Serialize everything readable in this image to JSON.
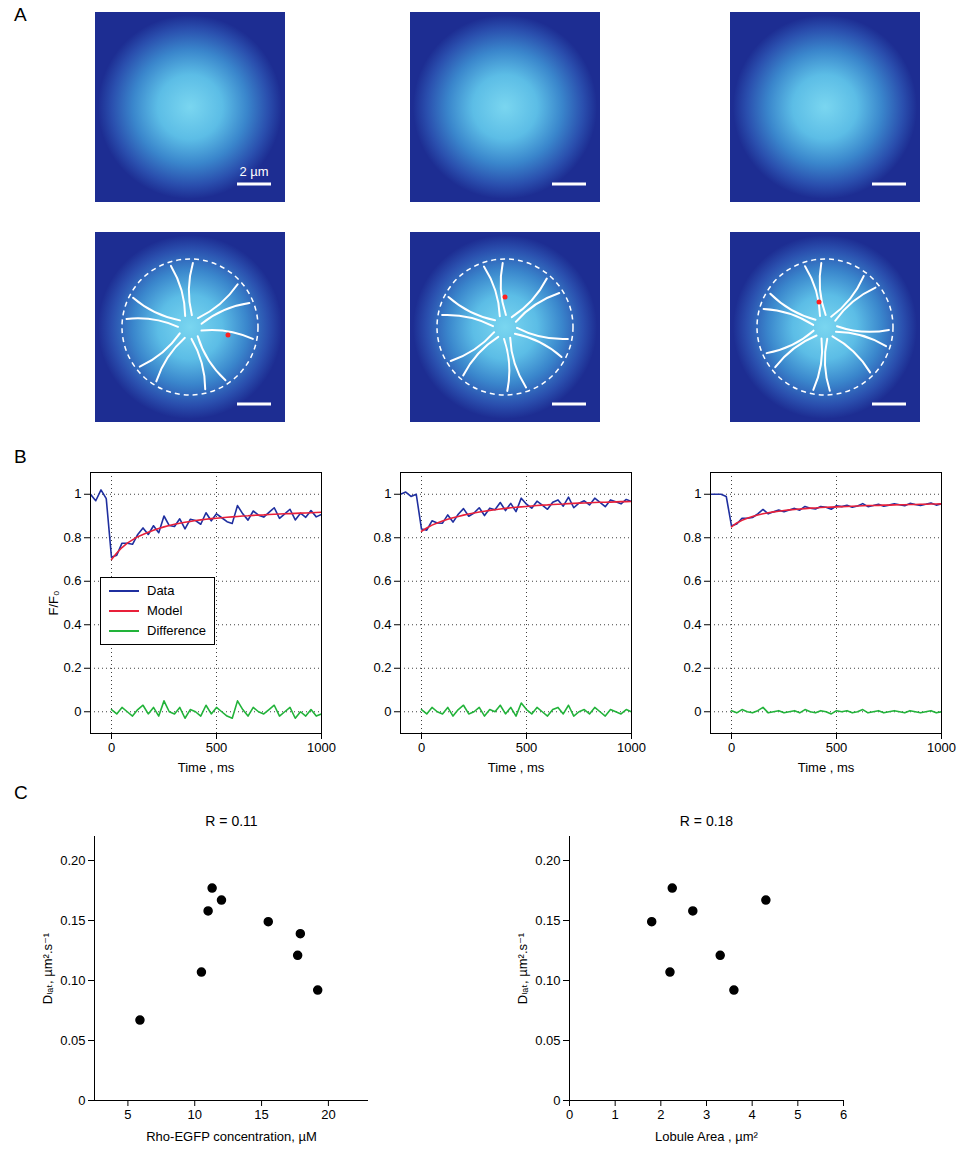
{
  "panel_labels": [
    "A",
    "B",
    "C"
  ],
  "panel_A": {
    "scale_bar_label": "2 µm"
  },
  "chart_data": [
    {
      "panel": "B",
      "type": "line",
      "xlabel": "Time , ms",
      "ylabel": "F/F₀",
      "xlim": [
        -100,
        1000
      ],
      "xticks": [
        0,
        500,
        1000
      ],
      "ylim": [
        -0.1,
        1.1
      ],
      "yticks": [
        0,
        0.2,
        0.4,
        0.6,
        0.8,
        1
      ],
      "grid": true,
      "legend": "left",
      "x": [
        -100,
        -75,
        -50,
        -25,
        0,
        25,
        50,
        75,
        100,
        125,
        150,
        175,
        200,
        225,
        250,
        275,
        300,
        325,
        350,
        375,
        400,
        425,
        450,
        475,
        500,
        525,
        550,
        575,
        600,
        625,
        650,
        675,
        700,
        725,
        750,
        775,
        800,
        825,
        850,
        875,
        900,
        925,
        950,
        975,
        1000
      ],
      "series": [
        {
          "name": "Data",
          "color": "#1f2f9f",
          "values": [
            1.0,
            0.97,
            1.02,
            0.98,
            0.71,
            0.72,
            0.775,
            0.775,
            0.77,
            0.815,
            0.845,
            0.815,
            0.855,
            0.823,
            0.9,
            0.856,
            0.852,
            0.887,
            0.841,
            0.885,
            0.879,
            0.862,
            0.915,
            0.878,
            0.91,
            0.892,
            0.874,
            0.866,
            0.948,
            0.91,
            0.881,
            0.923,
            0.904,
            0.895,
            0.917,
            0.938,
            0.889,
            0.91,
            0.931,
            0.882,
            0.913,
            0.894,
            0.925,
            0.896,
            0.907
          ]
        },
        {
          "name": "Model",
          "color": "#e8203a",
          "values": [
            null,
            null,
            null,
            null,
            0.7,
            0.73,
            0.755,
            0.775,
            0.79,
            0.805,
            0.815,
            0.825,
            0.835,
            0.843,
            0.85,
            0.856,
            0.862,
            0.867,
            0.871,
            0.875,
            0.879,
            0.882,
            0.885,
            0.888,
            0.89,
            0.892,
            0.894,
            0.896,
            0.898,
            0.9,
            0.901,
            0.903,
            0.904,
            0.905,
            0.907,
            0.908,
            0.909,
            0.91,
            0.911,
            0.912,
            0.913,
            0.914,
            0.915,
            0.916,
            0.917
          ]
        },
        {
          "name": "Difference",
          "color": "#22b33a",
          "values": [
            null,
            null,
            null,
            null,
            0.01,
            -0.01,
            0.02,
            0,
            -0.02,
            0.01,
            0.03,
            -0.01,
            0.02,
            -0.02,
            0.05,
            0,
            -0.01,
            0.02,
            -0.03,
            0.01,
            0,
            -0.02,
            0.03,
            -0.01,
            0.02,
            0,
            -0.02,
            -0.03,
            0.05,
            0.01,
            -0.02,
            0.02,
            0,
            -0.01,
            0.01,
            0.03,
            -0.02,
            0,
            0.02,
            -0.03,
            0,
            -0.02,
            0.01,
            -0.02,
            -0.01
          ]
        }
      ]
    },
    {
      "panel": "B",
      "type": "line",
      "xlabel": "Time , ms",
      "xlim": [
        -100,
        1000
      ],
      "xticks": [
        0,
        500,
        1000
      ],
      "ylim": [
        -0.1,
        1.1
      ],
      "yticks": [
        0,
        0.2,
        0.4,
        0.6,
        0.8,
        1
      ],
      "grid": true,
      "x": [
        -100,
        -75,
        -50,
        -25,
        0,
        25,
        50,
        75,
        100,
        125,
        150,
        175,
        200,
        225,
        250,
        275,
        300,
        325,
        350,
        375,
        400,
        425,
        450,
        475,
        500,
        525,
        550,
        575,
        600,
        625,
        650,
        675,
        700,
        725,
        750,
        775,
        800,
        825,
        850,
        875,
        900,
        925,
        950,
        975,
        1000
      ],
      "series": [
        {
          "name": "Data",
          "color": "#1f2f9f",
          "values": [
            1.0,
            1.01,
            0.99,
            1.0,
            0.84,
            0.835,
            0.878,
            0.868,
            0.867,
            0.905,
            0.872,
            0.908,
            0.934,
            0.899,
            0.914,
            0.938,
            0.902,
            0.936,
            0.929,
            0.962,
            0.925,
            0.958,
            0.92,
            0.982,
            0.954,
            0.936,
            0.968,
            0.95,
            0.931,
            0.963,
            0.974,
            0.945,
            0.987,
            0.938,
            0.959,
            0.97,
            0.951,
            0.982,
            0.963,
            0.943,
            0.974,
            0.965,
            0.956,
            0.976,
            0.967
          ]
        },
        {
          "name": "Model",
          "color": "#e8203a",
          "values": [
            null,
            null,
            null,
            null,
            0.83,
            0.845,
            0.858,
            0.868,
            0.877,
            0.885,
            0.892,
            0.898,
            0.904,
            0.909,
            0.914,
            0.918,
            0.922,
            0.926,
            0.929,
            0.932,
            0.935,
            0.938,
            0.94,
            0.942,
            0.944,
            0.946,
            0.948,
            0.95,
            0.951,
            0.953,
            0.954,
            0.955,
            0.957,
            0.958,
            0.959,
            0.96,
            0.961,
            0.962,
            0.963,
            0.963,
            0.964,
            0.965,
            0.966,
            0.966,
            0.967
          ]
        },
        {
          "name": "Difference",
          "color": "#22b33a",
          "values": [
            null,
            null,
            null,
            null,
            0.01,
            -0.01,
            0.02,
            0,
            -0.01,
            0.02,
            -0.02,
            0.01,
            0.03,
            -0.01,
            0,
            0.02,
            -0.02,
            0.01,
            0,
            0.03,
            -0.01,
            0.02,
            -0.02,
            0.04,
            0.01,
            -0.01,
            0.02,
            0,
            -0.02,
            0.01,
            0.02,
            -0.01,
            0.03,
            -0.02,
            0,
            0.01,
            -0.01,
            0.02,
            0,
            -0.02,
            0.01,
            0,
            -0.01,
            0.01,
            0
          ]
        }
      ]
    },
    {
      "panel": "B",
      "type": "line",
      "xlabel": "Time , ms",
      "xlim": [
        -100,
        1000
      ],
      "xticks": [
        0,
        500,
        1000
      ],
      "ylim": [
        -0.1,
        1.1
      ],
      "yticks": [
        0,
        0.2,
        0.4,
        0.6,
        0.8,
        1
      ],
      "grid": true,
      "x": [
        -100,
        -75,
        -50,
        -25,
        0,
        25,
        50,
        75,
        100,
        125,
        150,
        175,
        200,
        225,
        250,
        275,
        300,
        325,
        350,
        375,
        400,
        425,
        450,
        475,
        500,
        525,
        550,
        575,
        600,
        625,
        650,
        675,
        700,
        725,
        750,
        775,
        800,
        825,
        850,
        875,
        900,
        925,
        950,
        975,
        1000
      ],
      "series": [
        {
          "name": "Data",
          "color": "#1f2f9f",
          "values": [
            1.0,
            1.0,
            1.0,
            0.99,
            0.855,
            0.863,
            0.89,
            0.89,
            0.893,
            0.91,
            0.93,
            0.91,
            0.919,
            0.927,
            0.92,
            0.928,
            0.935,
            0.927,
            0.944,
            0.936,
            0.932,
            0.944,
            0.94,
            0.931,
            0.947,
            0.943,
            0.949,
            0.94,
            0.946,
            0.957,
            0.943,
            0.948,
            0.954,
            0.945,
            0.95,
            0.956,
            0.952,
            0.947,
            0.958,
            0.953,
            0.949,
            0.954,
            0.96,
            0.95,
            0.956
          ]
        },
        {
          "name": "Model",
          "color": "#e8203a",
          "values": [
            null,
            null,
            null,
            null,
            0.85,
            0.868,
            0.88,
            0.89,
            0.898,
            0.905,
            0.91,
            0.915,
            0.919,
            0.922,
            0.925,
            0.928,
            0.93,
            0.932,
            0.934,
            0.936,
            0.937,
            0.939,
            0.94,
            0.941,
            0.942,
            0.943,
            0.944,
            0.945,
            0.946,
            0.947,
            0.948,
            0.948,
            0.949,
            0.95,
            0.95,
            0.951,
            0.952,
            0.952,
            0.953,
            0.953,
            0.954,
            0.954,
            0.955,
            0.955,
            0.956
          ]
        },
        {
          "name": "Difference",
          "color": "#22b33a",
          "values": [
            null,
            null,
            null,
            null,
            0.005,
            -0.005,
            0.01,
            0,
            -0.005,
            0.005,
            0.02,
            -0.005,
            0,
            0.005,
            -0.005,
            0,
            0.005,
            -0.005,
            0.01,
            0,
            -0.005,
            0.005,
            0,
            -0.01,
            0.005,
            0,
            0.005,
            -0.005,
            0,
            0.01,
            -0.005,
            0,
            0.005,
            -0.005,
            0,
            0.005,
            0,
            -0.005,
            0.005,
            0,
            -0.005,
            0,
            0.005,
            -0.005,
            0
          ]
        }
      ]
    },
    {
      "panel": "C",
      "type": "scatter",
      "title": "R = 0.11",
      "xlabel": "Rho-EGFP concentration, µM",
      "ylabel": "Dₗₐₜ, µm².s⁻¹",
      "xlim": [
        2.5,
        23
      ],
      "xticks": [
        5,
        10,
        15,
        20
      ],
      "ylim": [
        0,
        0.22
      ],
      "yticks": [
        0,
        0.05,
        {
          "value": 0.1,
          "label": "0.10"
        },
        0.15,
        {
          "value": 0.2,
          "label": "0.20"
        }
      ],
      "grid": false,
      "color": "#000000",
      "marker": "circle",
      "x": [
        5.9,
        10.5,
        11.0,
        11.3,
        12.0,
        15.5,
        17.9,
        17.7,
        19.2
      ],
      "values": [
        0.067,
        0.107,
        0.158,
        0.177,
        0.167,
        0.149,
        0.139,
        0.121,
        0.092
      ]
    },
    {
      "panel": "C",
      "type": "scatter",
      "title": "R = 0.18",
      "xlabel": "Lobule Area , µm²",
      "ylabel": "Dₗₐₜ, µm².s⁻¹",
      "xlim": [
        0,
        6
      ],
      "xticks": [
        0,
        1,
        2,
        3,
        4,
        5,
        6
      ],
      "ylim": [
        0,
        0.22
      ],
      "yticks": [
        0,
        0.05,
        {
          "value": 0.1,
          "label": "0.10"
        },
        0.15,
        {
          "value": 0.2,
          "label": "0.20"
        }
      ],
      "grid": false,
      "color": "#000000",
      "marker": "circle",
      "x": [
        1.8,
        2.2,
        2.25,
        2.7,
        3.3,
        3.6,
        4.3
      ],
      "values": [
        0.149,
        0.107,
        0.177,
        0.158,
        0.121,
        0.092,
        0.167
      ]
    }
  ]
}
